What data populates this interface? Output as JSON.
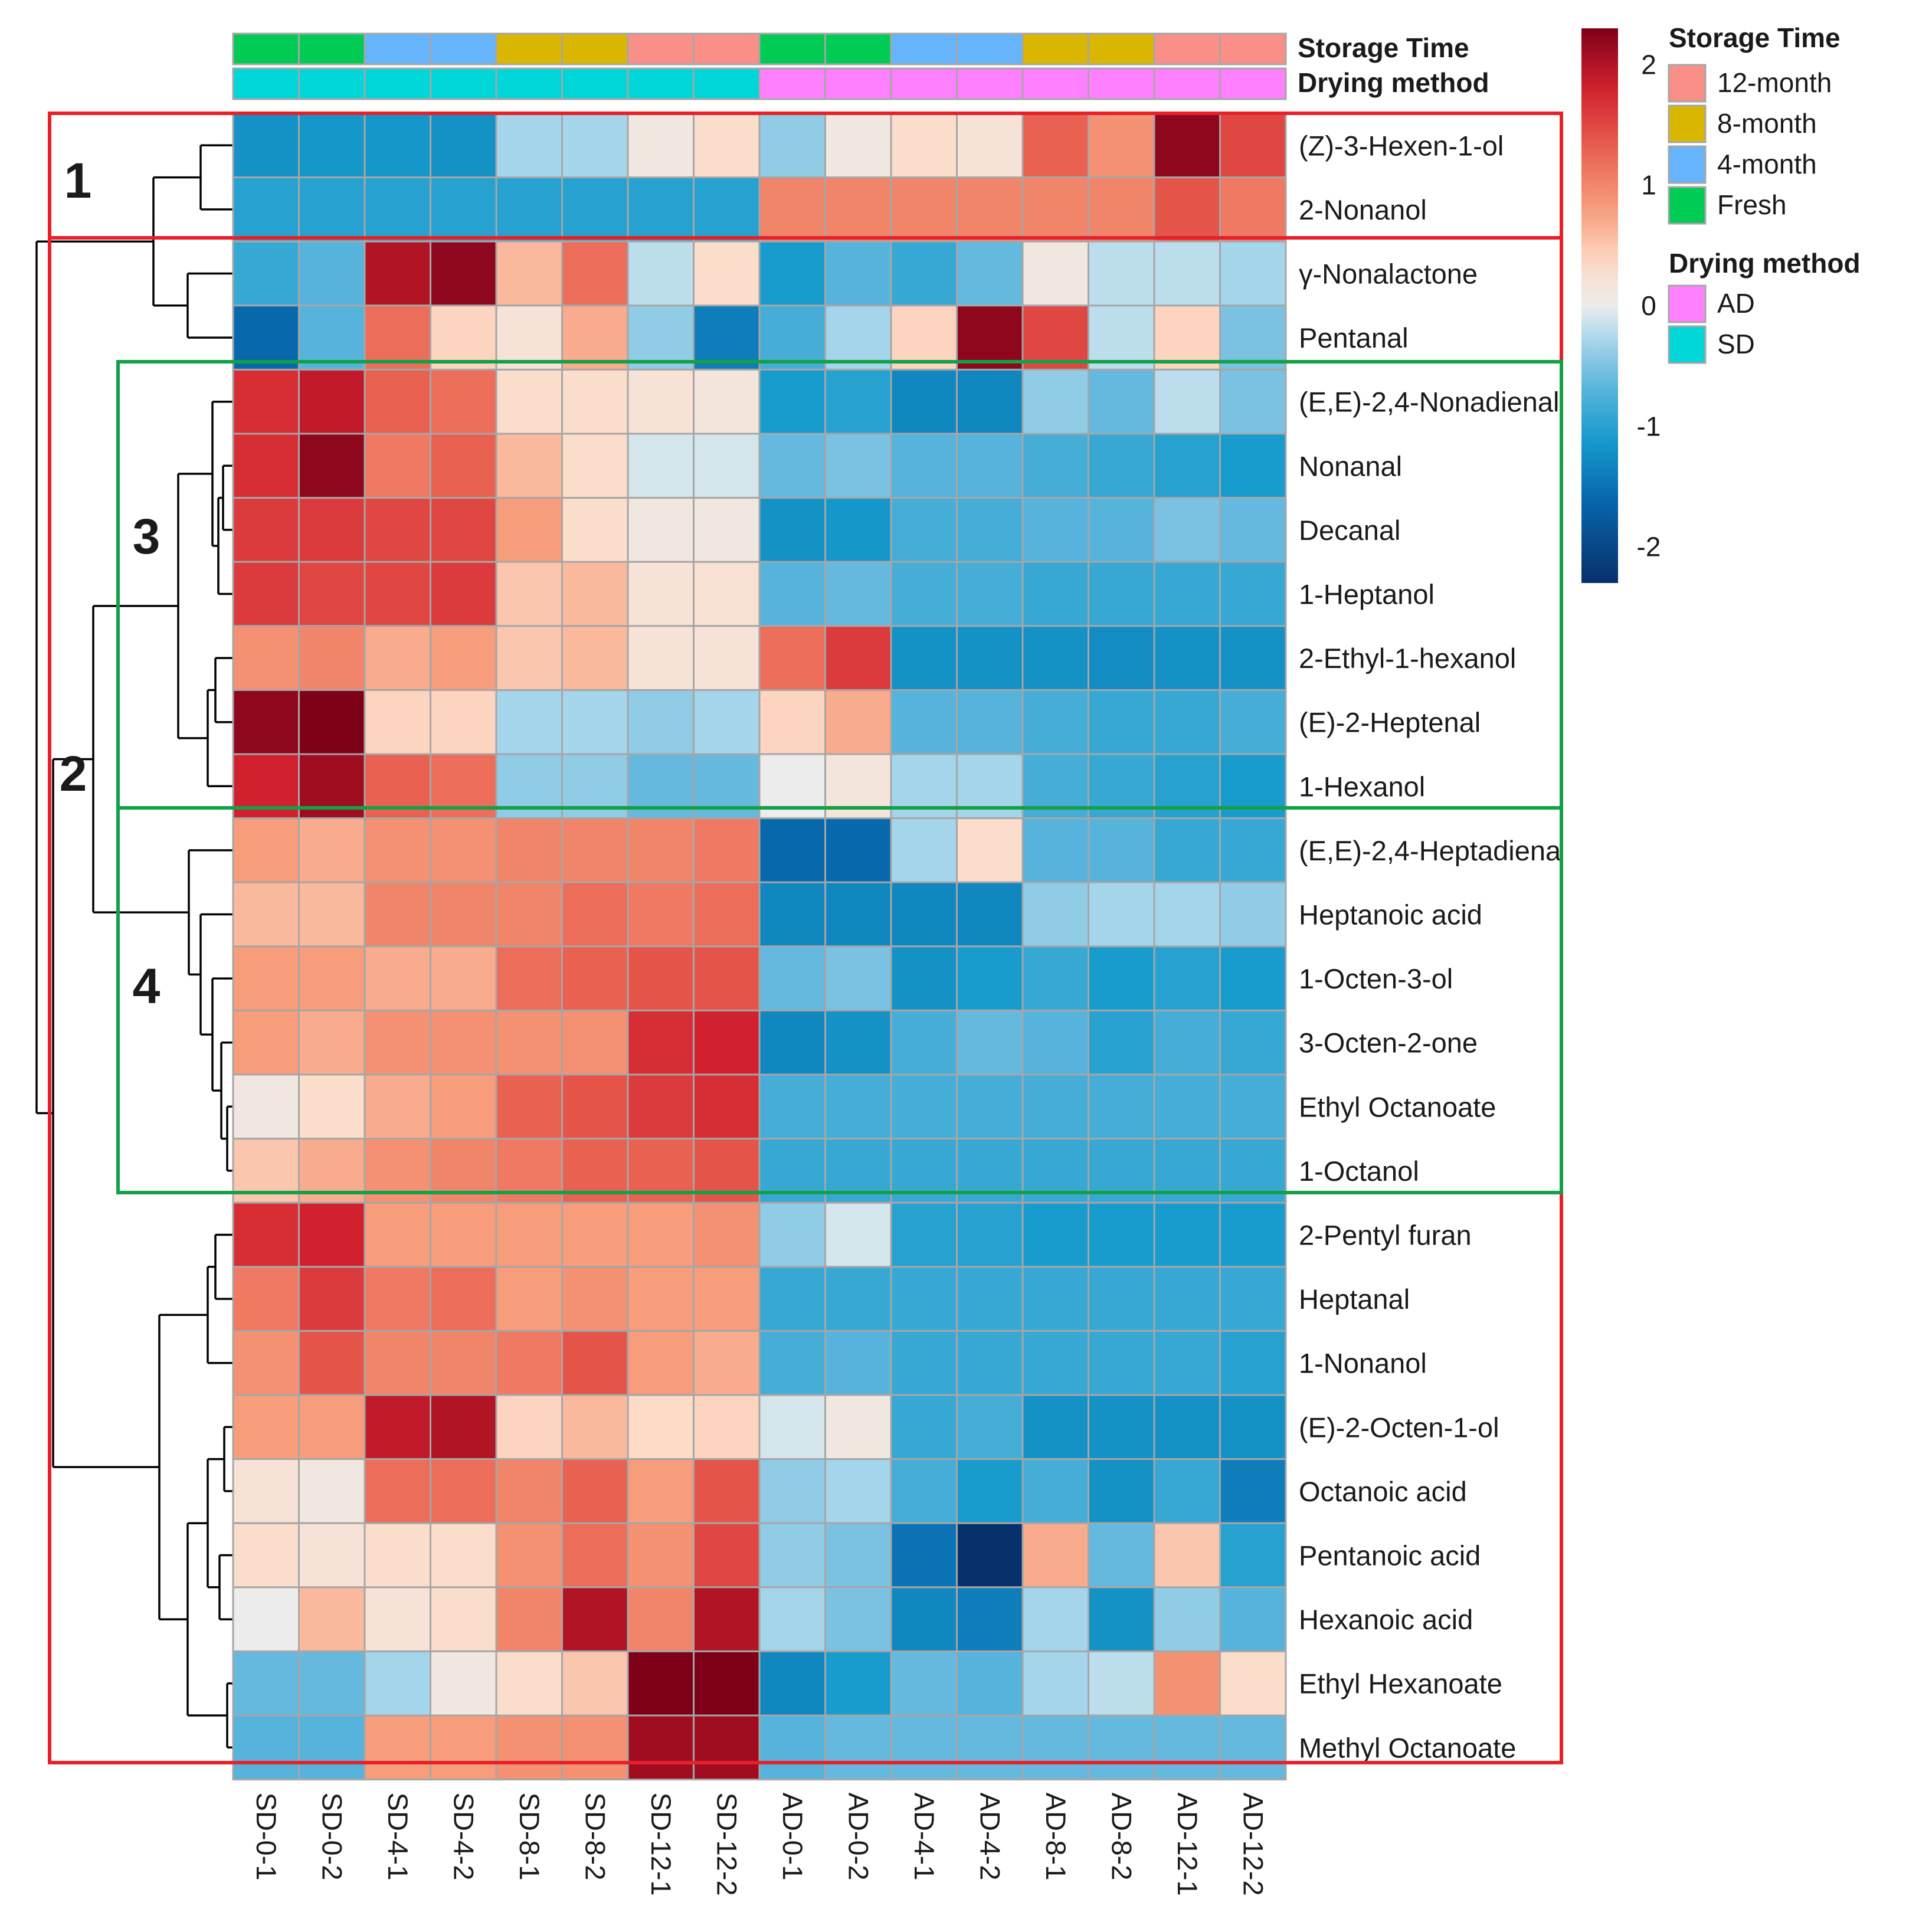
{
  "chart_data": {
    "type": "heatmap",
    "title": "",
    "columns": [
      "SD-0-1",
      "SD-0-2",
      "SD-4-1",
      "SD-4-2",
      "SD-8-1",
      "SD-8-2",
      "SD-12-1",
      "SD-12-2",
      "AD-0-1",
      "AD-0-2",
      "AD-4-1",
      "AD-4-2",
      "AD-8-1",
      "AD-8-2",
      "AD-12-1",
      "AD-12-2"
    ],
    "rows": [
      "(Z)-3-Hexen-1-ol",
      "2-Nonanol",
      "γ-Nonalactone",
      "Pentanal",
      "(E,E)-2,4-Nonadienal",
      "Nonanal",
      "Decanal",
      "1-Heptanol",
      "2-Ethyl-1-hexanol",
      "(E)-2-Heptenal",
      "1-Hexanol",
      "(E,E)-2,4-Heptadiena",
      "Heptanoic acid",
      "1-Octen-3-ol",
      "3-Octen-2-one",
      "Ethyl Octanoate",
      "1-Octanol",
      "2-Pentyl furan",
      "Heptanal",
      "1-Nonanol",
      "(E)-2-Octen-1-ol",
      "Octanoic acid",
      "Pentanoic acid",
      "Hexanoic acid",
      "Ethyl Hexanoate",
      "Methyl Octanoate"
    ],
    "values": [
      [
        -1.2,
        -1.15,
        -1.15,
        -1.2,
        -0.3,
        -0.3,
        0.1,
        0.3,
        -0.4,
        0.1,
        0.3,
        0.2,
        1.3,
        0.9,
        2.2,
        1.5
      ],
      [
        -1.0,
        -1.0,
        -1.0,
        -1.0,
        -1.0,
        -1.0,
        -1.0,
        -1.0,
        1.0,
        1.0,
        1.0,
        1.0,
        1.0,
        1.0,
        1.4,
        1.1
      ],
      [
        -0.9,
        -0.7,
        2.0,
        2.2,
        0.6,
        1.2,
        -0.2,
        0.3,
        -1.1,
        -0.7,
        -0.9,
        -0.6,
        0.1,
        -0.2,
        -0.2,
        -0.3
      ],
      [
        -1.6,
        -0.7,
        1.2,
        0.4,
        0.2,
        0.7,
        -0.4,
        -1.4,
        -0.8,
        -0.3,
        0.4,
        2.2,
        1.5,
        -0.2,
        0.4,
        -0.5
      ],
      [
        1.7,
        1.9,
        1.3,
        1.2,
        0.3,
        0.3,
        0.2,
        0.15,
        -1.1,
        -1.0,
        -1.3,
        -1.3,
        -0.4,
        -0.6,
        -0.2,
        -0.5
      ],
      [
        1.7,
        2.2,
        1.1,
        1.3,
        0.6,
        0.3,
        -0.1,
        -0.1,
        -0.6,
        -0.5,
        -0.7,
        -0.7,
        -0.8,
        -0.9,
        -1.0,
        -1.1
      ],
      [
        1.6,
        1.6,
        1.5,
        1.5,
        0.8,
        0.3,
        0.1,
        0.1,
        -1.2,
        -1.15,
        -0.8,
        -0.8,
        -0.7,
        -0.7,
        -0.5,
        -0.6
      ],
      [
        1.6,
        1.5,
        1.5,
        1.6,
        0.5,
        0.6,
        0.2,
        0.25,
        -0.7,
        -0.6,
        -0.8,
        -0.8,
        -0.9,
        -0.9,
        -0.9,
        -0.9
      ],
      [
        0.9,
        1.0,
        0.7,
        0.8,
        0.5,
        0.6,
        0.2,
        0.2,
        1.2,
        1.6,
        -1.2,
        -1.2,
        -1.2,
        -1.25,
        -1.2,
        -1.2
      ],
      [
        2.2,
        2.3,
        0.4,
        0.4,
        -0.3,
        -0.3,
        -0.4,
        -0.3,
        0.4,
        0.7,
        -0.7,
        -0.7,
        -0.8,
        -0.9,
        -0.9,
        -0.8
      ],
      [
        1.8,
        2.1,
        1.3,
        1.2,
        -0.4,
        -0.4,
        -0.6,
        -0.6,
        0.0,
        0.15,
        -0.3,
        -0.3,
        -0.8,
        -0.9,
        -1.0,
        -1.1
      ],
      [
        0.8,
        0.7,
        0.9,
        0.9,
        1.0,
        1.0,
        1.0,
        1.1,
        -1.6,
        -1.6,
        -0.3,
        0.3,
        -0.7,
        -0.7,
        -0.9,
        -0.9
      ],
      [
        0.6,
        0.6,
        1.0,
        1.0,
        1.0,
        1.2,
        1.1,
        1.2,
        -1.3,
        -1.3,
        -1.3,
        -1.3,
        -0.4,
        -0.3,
        -0.3,
        -0.4
      ],
      [
        0.8,
        0.8,
        0.7,
        0.7,
        1.2,
        1.3,
        1.4,
        1.4,
        -0.6,
        -0.5,
        -1.2,
        -1.1,
        -0.9,
        -1.1,
        -1.0,
        -1.1
      ],
      [
        0.8,
        0.7,
        0.9,
        0.9,
        0.9,
        0.9,
        1.7,
        1.8,
        -1.3,
        -1.2,
        -0.8,
        -0.6,
        -0.7,
        -1.0,
        -0.8,
        -0.9
      ],
      [
        0.1,
        0.3,
        0.7,
        0.8,
        1.3,
        1.4,
        1.6,
        1.7,
        -0.8,
        -0.8,
        -0.8,
        -0.8,
        -0.8,
        -0.8,
        -0.8,
        -0.8
      ],
      [
        0.5,
        0.7,
        0.9,
        1.0,
        1.1,
        1.3,
        1.3,
        1.4,
        -0.9,
        -0.9,
        -0.9,
        -0.9,
        -0.9,
        -0.9,
        -0.9,
        -0.9
      ],
      [
        1.7,
        1.8,
        0.8,
        0.8,
        0.8,
        0.8,
        0.8,
        0.9,
        -0.4,
        -0.1,
        -1.0,
        -1.0,
        -1.1,
        -1.1,
        -1.1,
        -1.1
      ],
      [
        1.1,
        1.6,
        1.1,
        1.2,
        0.8,
        0.9,
        0.8,
        0.8,
        -0.9,
        -0.9,
        -0.9,
        -0.9,
        -0.9,
        -0.9,
        -0.9,
        -0.9
      ],
      [
        0.9,
        1.4,
        1.0,
        1.0,
        1.1,
        1.4,
        0.8,
        0.7,
        -0.8,
        -0.7,
        -0.9,
        -0.9,
        -0.9,
        -0.9,
        -0.9,
        -1.0
      ],
      [
        0.8,
        0.8,
        1.9,
        2.0,
        0.4,
        0.6,
        0.35,
        0.4,
        -0.1,
        0.1,
        -0.9,
        -0.8,
        -1.2,
        -1.2,
        -1.2,
        -1.2
      ],
      [
        0.2,
        0.1,
        1.2,
        1.2,
        1.0,
        1.3,
        0.8,
        1.4,
        -0.4,
        -0.3,
        -0.8,
        -1.1,
        -0.8,
        -1.2,
        -0.9,
        -1.4
      ],
      [
        0.3,
        0.2,
        0.3,
        0.3,
        0.9,
        1.2,
        0.9,
        1.5,
        -0.4,
        -0.5,
        -1.5,
        -2.3,
        0.7,
        -0.6,
        0.5,
        -1.0
      ],
      [
        0.0,
        0.6,
        0.2,
        0.3,
        1.0,
        2.0,
        1.0,
        2.0,
        -0.3,
        -0.5,
        -1.3,
        -1.4,
        -0.3,
        -1.2,
        -0.4,
        -0.7
      ],
      [
        -0.6,
        -0.6,
        -0.3,
        0.1,
        0.3,
        0.5,
        2.3,
        2.3,
        -1.3,
        -1.1,
        -0.6,
        -0.7,
        -0.3,
        -0.2,
        0.9,
        0.3
      ],
      [
        -0.7,
        -0.7,
        0.8,
        0.8,
        0.9,
        0.9,
        2.1,
        2.1,
        -0.7,
        -0.6,
        -0.6,
        -0.6,
        -0.6,
        -0.6,
        -0.6,
        -0.6
      ]
    ],
    "annotation_rows": [
      {
        "name": "Storage Time",
        "values": [
          "Fresh",
          "Fresh",
          "4-month",
          "4-month",
          "8-month",
          "8-month",
          "12-month",
          "12-month",
          "Fresh",
          "Fresh",
          "4-month",
          "4-month",
          "8-month",
          "8-month",
          "12-month",
          "12-month"
        ]
      },
      {
        "name": "Drying method",
        "values": [
          "SD",
          "SD",
          "SD",
          "SD",
          "SD",
          "SD",
          "SD",
          "SD",
          "AD",
          "AD",
          "AD",
          "AD",
          "AD",
          "AD",
          "AD",
          "AD"
        ]
      }
    ],
    "colorbar": {
      "min": -2.3,
      "max": 2.3,
      "ticks": [
        2,
        1,
        0,
        -1,
        -2
      ]
    },
    "legends": [
      {
        "title": "Storage Time",
        "entries": [
          {
            "label": "12-month",
            "color": "#fa8f88"
          },
          {
            "label": "8-month",
            "color": "#d9b700"
          },
          {
            "label": "4-month",
            "color": "#66b4fb"
          },
          {
            "label": "Fresh",
            "color": "#00cc55"
          }
        ]
      },
      {
        "title": "Drying method",
        "entries": [
          {
            "label": "AD",
            "color": "#ff80ff"
          },
          {
            "label": "SD",
            "color": "#00d6d8"
          }
        ]
      }
    ],
    "clusters": [
      {
        "label": "1",
        "rows": [
          0,
          1
        ],
        "box": "red"
      },
      {
        "label": "2",
        "rows": [
          2,
          25
        ],
        "box": "red"
      },
      {
        "label": "3",
        "rows": [
          4,
          10
        ],
        "box": "green"
      },
      {
        "label": "4",
        "rows": [
          11,
          16
        ],
        "box": "green"
      }
    ]
  }
}
